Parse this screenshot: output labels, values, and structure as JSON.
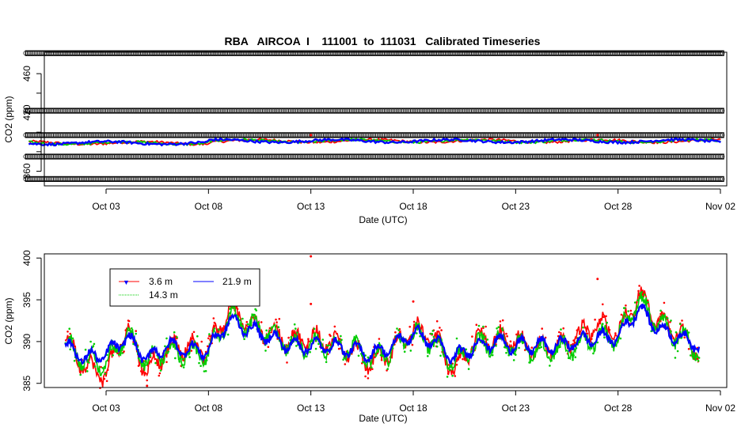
{
  "chart_data": [
    {
      "type": "scatter",
      "title": "RBA   AIRCOA  I    111001  to  111031   Calibrated Timeseries",
      "xlabel": "Date (UTC)",
      "ylabel": "CO2 (ppm)",
      "x_range": [
        "2011-09-30",
        "2011-11-02"
      ],
      "ylim": [
        345,
        482
      ],
      "x_ticks": [
        "Oct 03",
        "Oct 08",
        "Oct 13",
        "Oct 18",
        "Oct 23",
        "Oct 28",
        "Nov 02"
      ],
      "y_ticks": [
        360,
        380,
        400,
        420,
        440,
        460
      ],
      "y_tick_labels": [
        "360",
        "",
        "",
        "420",
        "",
        "460"
      ],
      "grid": false,
      "series": [
        {
          "color": "#000000",
          "marker": "open-circle",
          "constant_levels": [
            352,
            375,
            397,
            422,
            481
          ],
          "x_range": [
            "2011-10-01",
            "2011-11-01"
          ]
        },
        {
          "color": "#ff0000",
          "marker": "point",
          "base_level": 389
        },
        {
          "color": "#00cc00",
          "marker": "point",
          "base_level": 389
        },
        {
          "color": "#0000ff",
          "marker": "point",
          "base_level": 389
        }
      ],
      "annotations": [
        {
          "x": "2011-10-13",
          "y": 397,
          "color": "#ff0000"
        },
        {
          "x": "2011-10-27",
          "y": 397,
          "color": "#ff0000"
        }
      ]
    },
    {
      "type": "scatter",
      "title": "",
      "xlabel": "Date (UTC)",
      "ylabel": "CO2 (ppm)",
      "x_range": [
        "2011-09-30",
        "2011-11-02"
      ],
      "ylim": [
        384.5,
        400.5
      ],
      "x_ticks": [
        "Oct 03",
        "Oct 08",
        "Oct 13",
        "Oct 18",
        "Oct 23",
        "Oct 28",
        "Nov 02"
      ],
      "y_ticks": [
        385,
        390,
        395,
        400
      ],
      "grid": false,
      "legend": {
        "placement": "top-left",
        "entries": [
          {
            "label": "3.6 m",
            "color": "#ff0000"
          },
          {
            "label": "21.9 m",
            "color": "#0000ff"
          },
          {
            "label": "14.3 m",
            "color": "#00cc00"
          }
        ]
      },
      "series": [
        {
          "name": "3.6 m",
          "color": "#ff0000",
          "x": [
            "2011-10-01",
            "2011-10-02",
            "2011-10-03",
            "2011-10-04",
            "2011-10-05",
            "2011-10-06",
            "2011-10-07",
            "2011-10-08",
            "2011-10-09",
            "2011-10-10",
            "2011-10-11",
            "2011-10-12",
            "2011-10-13",
            "2011-10-14",
            "2011-10-15",
            "2011-10-16",
            "2011-10-17",
            "2011-10-18",
            "2011-10-19",
            "2011-10-20",
            "2011-10-21",
            "2011-10-22",
            "2011-10-23",
            "2011-10-24",
            "2011-10-25",
            "2011-10-26",
            "2011-10-27",
            "2011-10-28",
            "2011-10-29",
            "2011-10-30",
            "2011-10-31",
            "2011-11-01"
          ],
          "values": [
            390.5,
            387.0,
            386.0,
            391.5,
            386.5,
            389.0,
            389.5,
            389.0,
            394.0,
            392.0,
            391.0,
            390.0,
            390.5,
            390.0,
            389.0,
            387.5,
            389.0,
            391.5,
            390.5,
            386.5,
            390.0,
            390.5,
            390.0,
            389.0,
            389.5,
            390.5,
            392.0,
            391.0,
            395.5,
            392.5,
            391.0,
            388.5
          ]
        },
        {
          "name": "14.3 m",
          "color": "#00cc00",
          "x": [
            "2011-10-01",
            "2011-10-02",
            "2011-10-03",
            "2011-10-04",
            "2011-10-05",
            "2011-10-06",
            "2011-10-07",
            "2011-10-08",
            "2011-10-09",
            "2011-10-10",
            "2011-10-11",
            "2011-10-12",
            "2011-10-13",
            "2011-10-14",
            "2011-10-15",
            "2011-10-16",
            "2011-10-17",
            "2011-10-18",
            "2011-10-19",
            "2011-10-20",
            "2011-10-21",
            "2011-10-22",
            "2011-10-23",
            "2011-10-24",
            "2011-10-25",
            "2011-10-26",
            "2011-10-27",
            "2011-10-28",
            "2011-10-29",
            "2011-10-30",
            "2011-10-31",
            "2011-11-01"
          ],
          "values": [
            390.0,
            387.5,
            387.5,
            391.0,
            387.5,
            389.0,
            388.5,
            388.5,
            393.0,
            392.0,
            391.0,
            389.5,
            389.5,
            389.5,
            389.5,
            388.0,
            389.0,
            391.0,
            390.0,
            387.5,
            389.5,
            390.0,
            389.5,
            389.0,
            389.0,
            389.5,
            390.5,
            390.5,
            395.0,
            392.0,
            390.5,
            389.0
          ]
        },
        {
          "name": "21.9 m",
          "color": "#0000ff",
          "x": [
            "2011-10-01",
            "2011-10-02",
            "2011-10-03",
            "2011-10-04",
            "2011-10-05",
            "2011-10-06",
            "2011-10-07",
            "2011-10-08",
            "2011-10-09",
            "2011-10-10",
            "2011-10-11",
            "2011-10-12",
            "2011-10-13",
            "2011-10-14",
            "2011-10-15",
            "2011-10-16",
            "2011-10-17",
            "2011-10-18",
            "2011-10-19",
            "2011-10-20",
            "2011-10-21",
            "2011-10-22",
            "2011-10-23",
            "2011-10-24",
            "2011-10-25",
            "2011-10-26",
            "2011-10-27",
            "2011-10-28",
            "2011-10-29",
            "2011-10-30",
            "2011-10-31",
            "2011-11-01"
          ],
          "values": [
            389.5,
            388.0,
            388.5,
            390.5,
            388.0,
            389.5,
            389.0,
            389.0,
            392.5,
            391.5,
            390.5,
            389.5,
            389.5,
            389.5,
            389.0,
            388.5,
            389.5,
            391.0,
            390.0,
            388.0,
            389.5,
            390.0,
            389.5,
            389.5,
            389.5,
            390.0,
            390.5,
            390.5,
            394.0,
            391.5,
            390.5,
            389.5
          ]
        }
      ],
      "outliers": [
        {
          "x": "2011-10-13",
          "y": 400.2,
          "color": "#ff0000"
        },
        {
          "x": "2011-10-13",
          "y": 394.5,
          "color": "#ff0000"
        },
        {
          "x": "2011-10-18",
          "y": 394.8,
          "color": "#ff0000"
        },
        {
          "x": "2011-10-27",
          "y": 397.5,
          "color": "#ff0000"
        },
        {
          "x": "2011-10-05",
          "y": 384.7,
          "color": "#ff0000"
        }
      ]
    }
  ]
}
